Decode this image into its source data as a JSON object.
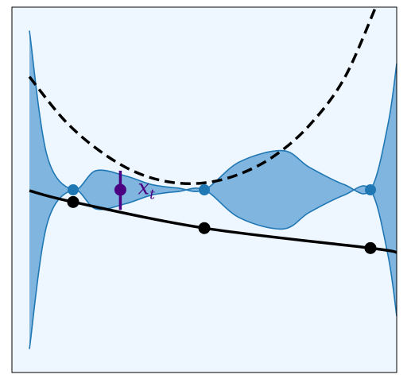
{
  "chart_data": {
    "type": "line",
    "title": "",
    "xlabel": "",
    "ylabel": "",
    "xlim": [
      -1.1,
      1.1
    ],
    "ylim": [
      -2.1,
      2.1
    ],
    "grid": false,
    "legend": "none",
    "colors": {
      "background": "#eef7ff",
      "band_fill": "#7fb5de",
      "band_edge": "#1f77b4",
      "anchor_points": "#1f77b4",
      "mean_line": "#000000",
      "upper_curve": "#000000",
      "marker": "#4b0082"
    },
    "anchor_points": {
      "x": [
        -0.75,
        0.0,
        0.95
      ],
      "y": [
        0.0,
        0.0,
        0.0
      ]
    },
    "uncertainty_band": {
      "x": [
        -1.0,
        -0.9,
        -0.75,
        -0.62,
        -0.45,
        -0.3,
        -0.15,
        0.0,
        0.2,
        0.45,
        0.6,
        0.8,
        0.95,
        1.05,
        1.1
      ],
      "upper": [
        1.83,
        0.4,
        0.0,
        0.22,
        0.16,
        0.06,
        0.02,
        0.0,
        0.32,
        0.45,
        0.26,
        0.06,
        0.0,
        0.75,
        1.45
      ],
      "lower": [
        -1.83,
        -0.4,
        0.0,
        -0.22,
        -0.16,
        -0.06,
        -0.02,
        0.0,
        -0.32,
        -0.45,
        -0.26,
        -0.06,
        0.0,
        -0.75,
        -1.45
      ]
    },
    "mean_line": {
      "x": [
        -1.0,
        -0.75,
        0.0,
        0.95,
        1.1
      ],
      "y": [
        -0.01,
        -0.14,
        -0.44,
        -0.67,
        -0.72
      ]
    },
    "upper_curve": {
      "x": [
        -1.0,
        -0.8,
        -0.6,
        -0.4,
        -0.2,
        0.0,
        0.2,
        0.4,
        0.6,
        0.8,
        0.98
      ],
      "y": [
        1.3,
        0.8,
        0.45,
        0.21,
        0.09,
        0.08,
        0.18,
        0.39,
        0.74,
        1.28,
        2.1
      ]
    },
    "marker_point": {
      "x": -0.48,
      "y": 0.0,
      "y_low": -0.23,
      "y_high": 0.22
    },
    "annotation": {
      "text_base": "x",
      "text_sub": "t",
      "x": -0.38,
      "y": -0.05
    }
  }
}
